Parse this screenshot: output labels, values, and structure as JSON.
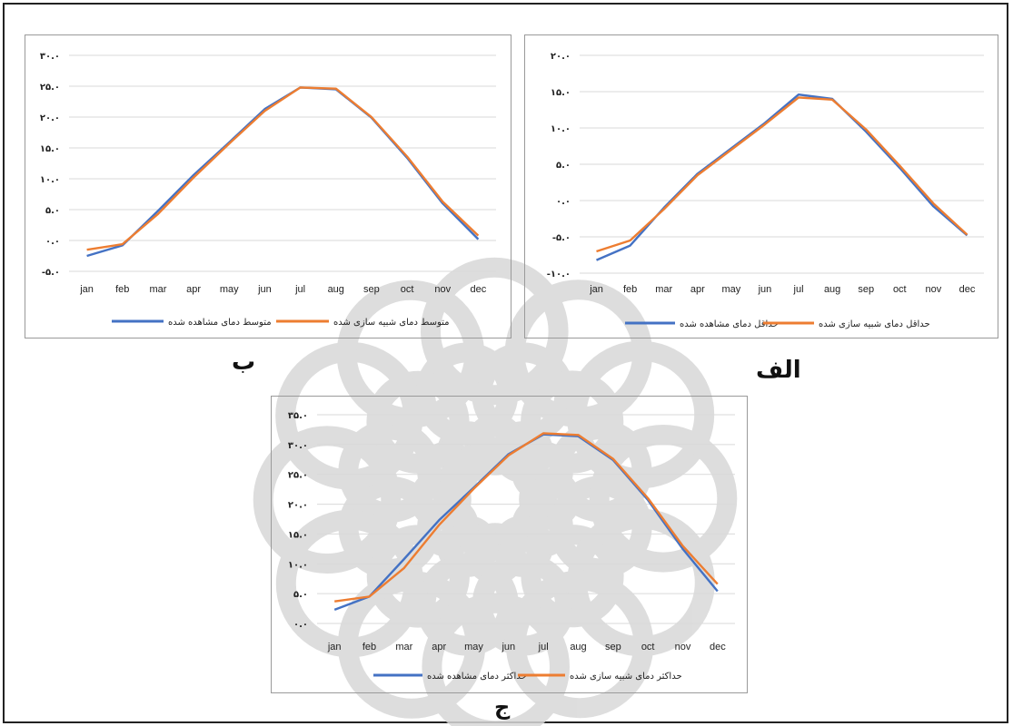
{
  "panels": {
    "a": {
      "letter": "الف"
    },
    "b": {
      "letter": "ب"
    },
    "c": {
      "letter": "ج"
    }
  },
  "colors": {
    "observed": "#4472C4",
    "simulated": "#ED7D31",
    "grid": "#d9d9d9"
  },
  "chart_data": [
    {
      "id": "a",
      "type": "line",
      "categories": [
        "jan",
        "feb",
        "mar",
        "apr",
        "may",
        "jun",
        "jul",
        "aug",
        "sep",
        "oct",
        "nov",
        "dec"
      ],
      "y_ticks": [
        -10,
        -5,
        0,
        5,
        10,
        15,
        20
      ],
      "y_tick_labels": [
        "-۱۰.۰",
        "-۵.۰",
        "۰.۰",
        "۵.۰",
        "۱۰.۰",
        "۱۵.۰",
        "۲۰.۰"
      ],
      "ylim": [
        -10,
        20
      ],
      "grid": true,
      "legend_position": "bottom",
      "series": [
        {
          "name": "حداقل دمای مشاهده شده",
          "color": "#4472C4",
          "values": [
            -8.2,
            -6.2,
            -1.0,
            3.7,
            7.2,
            10.7,
            14.6,
            14.0,
            9.5,
            4.5,
            -0.8,
            -4.8
          ]
        },
        {
          "name": "حداقل دمای شبیه سازی شده",
          "color": "#ED7D31",
          "values": [
            -7.0,
            -5.5,
            -1.2,
            3.5,
            7.0,
            10.5,
            14.2,
            13.9,
            9.8,
            4.8,
            -0.4,
            -4.7
          ]
        }
      ]
    },
    {
      "id": "b",
      "type": "line",
      "categories": [
        "jan",
        "feb",
        "mar",
        "apr",
        "may",
        "jun",
        "jul",
        "aug",
        "sep",
        "oct",
        "nov",
        "dec"
      ],
      "y_ticks": [
        -5,
        0,
        5,
        10,
        15,
        20,
        25,
        30
      ],
      "y_tick_labels": [
        "-۵.۰",
        "۰.۰",
        "۵.۰",
        "۱۰.۰",
        "۱۵.۰",
        "۲۰.۰",
        "۲۵.۰",
        "۳۰.۰"
      ],
      "ylim": [
        -5,
        30
      ],
      "grid": true,
      "legend_position": "bottom",
      "series": [
        {
          "name": "متوسط دمای مشاهده شده",
          "color": "#4472C4",
          "values": [
            -2.5,
            -0.8,
            4.8,
            10.6,
            15.9,
            21.3,
            24.8,
            24.5,
            19.9,
            13.4,
            6.0,
            0.2
          ]
        },
        {
          "name": "متوسط دمای شبیه سازی شده",
          "color": "#ED7D31",
          "values": [
            -1.5,
            -0.6,
            4.3,
            10.2,
            15.7,
            21.0,
            24.8,
            24.6,
            20.0,
            13.6,
            6.3,
            0.8
          ]
        }
      ]
    },
    {
      "id": "c",
      "type": "line",
      "categories": [
        "jan",
        "feb",
        "mar",
        "apr",
        "may",
        "jun",
        "jul",
        "aug",
        "sep",
        "oct",
        "nov",
        "dec"
      ],
      "y_ticks": [
        0,
        5,
        10,
        15,
        20,
        25,
        30,
        35
      ],
      "y_tick_labels": [
        "۰.۰",
        "۵.۰",
        "۱۰.۰",
        "۱۵.۰",
        "۲۰.۰",
        "۲۵.۰",
        "۳۰.۰",
        "۳۵.۰"
      ],
      "ylim": [
        0,
        35
      ],
      "grid": true,
      "legend_position": "bottom",
      "series": [
        {
          "name": "حداکثر دمای مشاهده شده",
          "color": "#4472C4",
          "values": [
            2.3,
            4.5,
            10.8,
            17.3,
            22.8,
            28.4,
            31.7,
            31.4,
            27.4,
            20.7,
            12.5,
            5.4
          ]
        },
        {
          "name": "حداکثر دمای شبیه سازی شده",
          "color": "#ED7D31",
          "values": [
            3.7,
            4.5,
            9.3,
            16.5,
            22.6,
            28.2,
            31.9,
            31.6,
            27.6,
            21.0,
            13.0,
            6.6
          ]
        }
      ]
    }
  ]
}
